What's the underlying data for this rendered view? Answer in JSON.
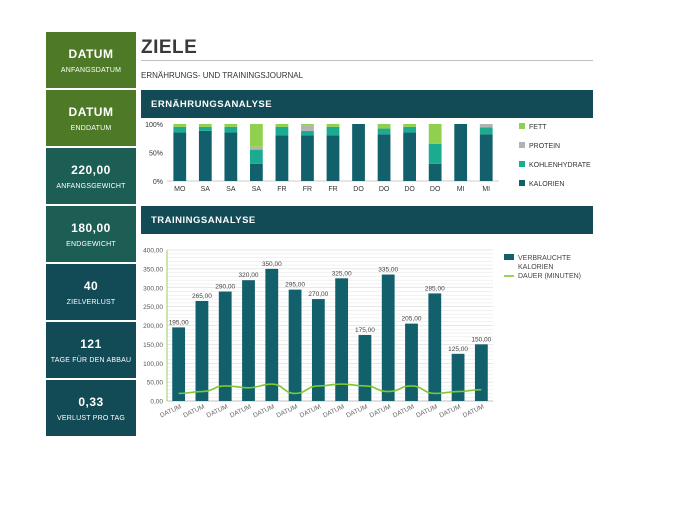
{
  "header": {
    "title": "ZIELE",
    "subtitle": "ERNÄHRUNGS- UND TRAININGSJOURNAL"
  },
  "sidebar": {
    "cards": [
      {
        "value": "DATUM",
        "label": "ANFANGSDATUM",
        "color": "#4e7a27"
      },
      {
        "value": "DATUM",
        "label": "ENDDATUM",
        "color": "#4e7a27"
      },
      {
        "value": "220,00",
        "label": "ANFANGSGEWICHT",
        "color": "#1d5e54"
      },
      {
        "value": "180,00",
        "label": "ENDGEWICHT",
        "color": "#1d5e54"
      },
      {
        "value": "40",
        "label": "ZIELVERLUST",
        "color": "#124a55"
      },
      {
        "value": "121",
        "label": "TAGE FÜR DEN ABBAU",
        "color": "#124a55"
      },
      {
        "value": "0,33",
        "label": "VERLUST PRO TAG",
        "color": "#124a55"
      }
    ]
  },
  "sections": {
    "nutrition": "ERNÄHRUNGSANALYSE",
    "training": "TRAININGSANALYSE"
  },
  "colors": {
    "fett": "#8fd14f",
    "protein": "#b3b3b3",
    "kohlenhydrate": "#1aab91",
    "kalorien": "#12606b",
    "dauer": "#7dc832"
  },
  "chart_data": [
    {
      "type": "bar",
      "stacked": "percent",
      "title": "ERNÄHRUNGSANALYSE",
      "categories": [
        "MO",
        "SA",
        "SA",
        "SA",
        "FR",
        "FR",
        "FR",
        "DO",
        "DO",
        "DO",
        "DO",
        "MI",
        "MI"
      ],
      "y_ticks": [
        "0%",
        "50%",
        "100%"
      ],
      "ylim": [
        0,
        100
      ],
      "legend_position": "right",
      "series": [
        {
          "name": "KALORIEN",
          "values": [
            85,
            88,
            85,
            30,
            80,
            80,
            80,
            100,
            82,
            85,
            30,
            100,
            82
          ]
        },
        {
          "name": "KOHLENHYDRATE",
          "values": [
            10,
            7,
            10,
            25,
            15,
            8,
            15,
            0,
            10,
            10,
            35,
            0,
            12
          ]
        },
        {
          "name": "PROTEIN",
          "values": [
            0,
            0,
            0,
            5,
            0,
            10,
            0,
            0,
            0,
            0,
            0,
            0,
            6
          ]
        },
        {
          "name": "FETT",
          "values": [
            5,
            5,
            5,
            40,
            5,
            2,
            5,
            0,
            8,
            5,
            35,
            0,
            0
          ]
        }
      ]
    },
    {
      "type": "bar",
      "title": "TRAININGSANALYSE",
      "categories": [
        "DATUM",
        "DATUM",
        "DATUM",
        "DATUM",
        "DATUM",
        "DATUM",
        "DATUM",
        "DATUM",
        "DATUM",
        "DATUM",
        "DATUM",
        "DATUM",
        "DATUM",
        "DATUM"
      ],
      "y_ticks": [
        "0,00",
        "50,00",
        "100,00",
        "150,00",
        "200,00",
        "250,00",
        "300,00",
        "350,00",
        "400,00"
      ],
      "ylim": [
        0,
        400
      ],
      "grid": true,
      "legend_position": "right",
      "series": [
        {
          "name": "VERBRAUCHTE KALORIEN",
          "type": "bar",
          "values": [
            195,
            265,
            290,
            320,
            350,
            295,
            270,
            325,
            175,
            335,
            205,
            285,
            125,
            150
          ],
          "labels": [
            "195,00",
            "265,00",
            "290,00",
            "320,00",
            "350,00",
            "295,00",
            "270,00",
            "325,00",
            "175,00",
            "335,00",
            "205,00",
            "285,00",
            "125,00",
            "150,00"
          ]
        },
        {
          "name": "DAUER (MINUTEN)",
          "type": "line",
          "values": [
            20,
            25,
            40,
            35,
            45,
            20,
            40,
            45,
            40,
            25,
            40,
            20,
            25,
            30
          ]
        }
      ]
    }
  ]
}
